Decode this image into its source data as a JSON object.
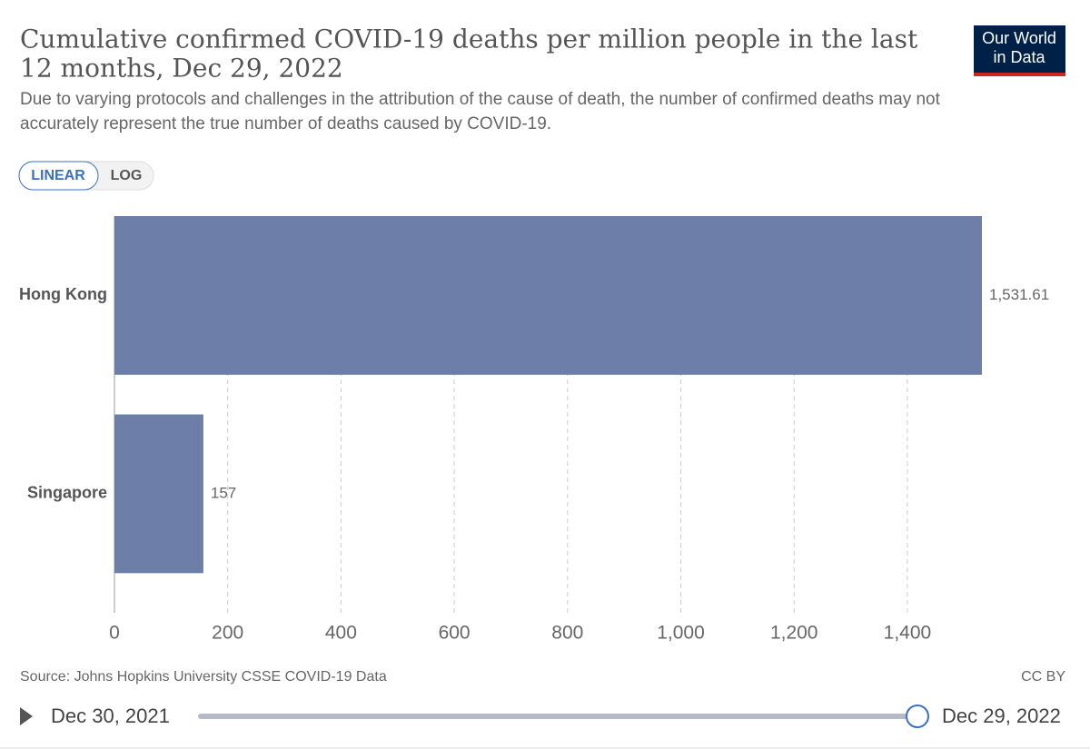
{
  "chart_data": {
    "type": "bar",
    "orientation": "horizontal",
    "title": "Cumulative confirmed COVID-19 deaths per million people in the last",
    "title_line2": "12 months, Dec 29, 2022",
    "subtitle": "Due to varying protocols and challenges in the attribution of the cause of death, the number of confirmed deaths may not",
    "subtitle_line2": "accurately represent the true number of deaths caused by COVID-19.",
    "logo": [
      "Our World",
      "in Data"
    ],
    "scale_options": [
      "LINEAR",
      "LOG"
    ],
    "categories": [
      "Hong Kong",
      "Singapore"
    ],
    "values": [
      1531.61,
      157
    ],
    "value_labels": [
      "1,531.61",
      "157"
    ],
    "color": "#6d7fa8",
    "xlim": [
      0,
      1531.61
    ],
    "xticks": [
      0,
      200,
      400,
      600,
      800,
      {
        "value": 1000,
        "label": "1,000"
      },
      {
        "value": 1200,
        "label": "1,200"
      },
      {
        "value": 1400,
        "label": "1,400"
      }
    ],
    "grid": true,
    "source": "Source: Johns Hopkins University CSSE COVID-19 Data",
    "license": "CC BY",
    "timeline": {
      "start": "Dec 30, 2021",
      "end": "Dec 29, 2022"
    }
  }
}
